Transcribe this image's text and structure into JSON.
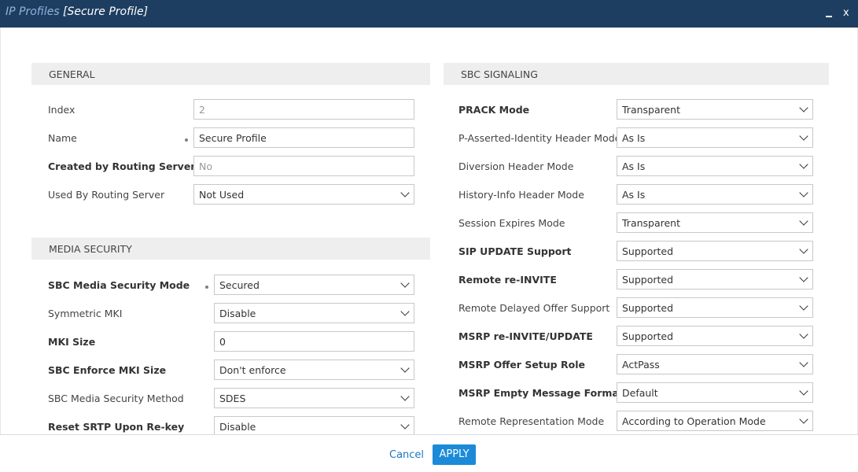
{
  "title": {
    "crumb": "IP Profiles",
    "profile": "[Secure Profile]",
    "minimize": "_",
    "close": "x"
  },
  "general": {
    "header": "GENERAL",
    "rows": [
      {
        "label": "Index",
        "value": "2"
      },
      {
        "label": "Name",
        "value": "Secure Profile"
      },
      {
        "label": "Created by Routing Server",
        "value": "No"
      },
      {
        "label": "Used By Routing Server",
        "value": "Not Used"
      }
    ]
  },
  "media_security": {
    "header": "MEDIA SECURITY",
    "rows": [
      {
        "label": "SBC Media Security Mode",
        "value": "Secured"
      },
      {
        "label": "Symmetric MKI",
        "value": "Disable"
      },
      {
        "label": "MKI Size",
        "value": "0"
      },
      {
        "label": "SBC Enforce MKI Size",
        "value": "Don't enforce"
      },
      {
        "label": "SBC Media Security Method",
        "value": "SDES"
      },
      {
        "label": "Reset SRTP Upon Re-key",
        "value": "Disable"
      }
    ]
  },
  "sbc_signaling": {
    "header": "SBC SIGNALING",
    "rows": [
      {
        "label": "PRACK Mode",
        "value": "Transparent"
      },
      {
        "label": "P-Asserted-Identity Header Mode",
        "value": "As Is"
      },
      {
        "label": "Diversion Header Mode",
        "value": "As Is"
      },
      {
        "label": "History-Info Header Mode",
        "value": "As Is"
      },
      {
        "label": "Session Expires Mode",
        "value": "Transparent"
      },
      {
        "label": "SIP UPDATE Support",
        "value": "Supported"
      },
      {
        "label": "Remote re-INVITE",
        "value": "Supported"
      },
      {
        "label": "Remote Delayed Offer Support",
        "value": "Supported"
      },
      {
        "label": "MSRP re-INVITE/UPDATE",
        "value": "Supported"
      },
      {
        "label": "MSRP Offer Setup Role",
        "value": "ActPass"
      },
      {
        "label": "MSRP Empty Message Format",
        "value": "Default"
      },
      {
        "label": "Remote Representation Mode",
        "value": "According to Operation Mode"
      }
    ]
  },
  "footer": {
    "cancel": "Cancel",
    "apply": "APPLY"
  },
  "colors": {
    "titlebar": "#1e3e61",
    "crumb": "#8fb4de",
    "apply": "#1b8ad8",
    "link": "#1b77c5"
  }
}
